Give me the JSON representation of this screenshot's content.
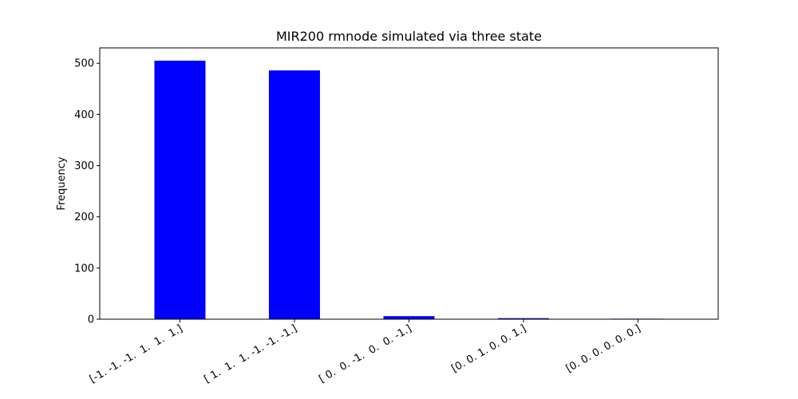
{
  "chart_data": {
    "type": "bar",
    "title": "MIR200 rmnode simulated via three state",
    "xlabel": "",
    "ylabel": "Frequency",
    "categories": [
      "[-1. -1. -1.  1.  1.  1.]",
      "[ 1.  1.  1. -1. -1. -1.]",
      "[ 0.  0. -1.  0.  0. -1.]",
      "[0. 0. 1. 0. 0. 1.]",
      "[0. 0. 0. 0. 0. 0.]"
    ],
    "values": [
      505,
      486,
      6,
      2,
      1
    ],
    "ylim": [
      0,
      530
    ],
    "yticks": [
      0,
      100,
      200,
      300,
      400,
      500
    ],
    "bar_color": "#0000ff",
    "grid": false
  }
}
